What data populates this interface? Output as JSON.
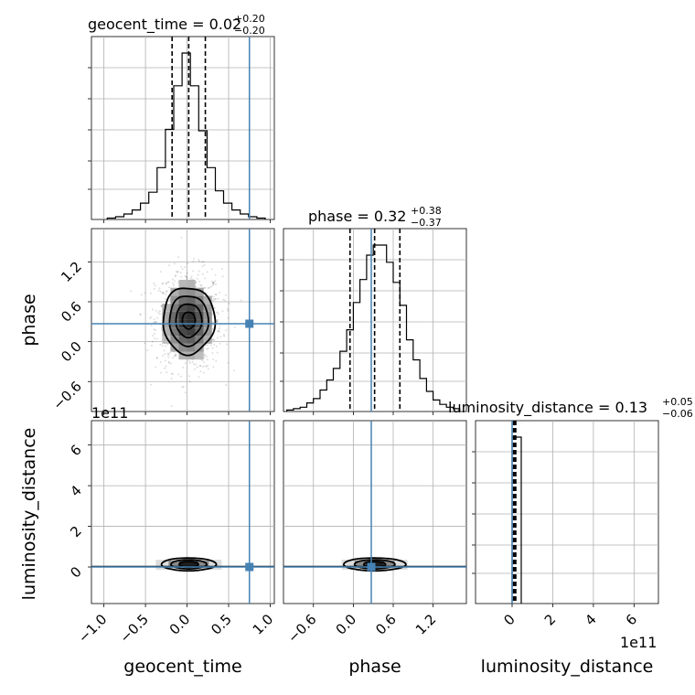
{
  "chart_data": {
    "type": "corner",
    "parameters": [
      "geocent_time",
      "phase",
      "luminosity_distance"
    ],
    "titles": [
      {
        "name": "geocent_time",
        "median": "0.02",
        "plus": "+0.20",
        "minus": "−0.20"
      },
      {
        "name": "phase",
        "median": "0.32",
        "plus": "+0.38",
        "minus": "−0.37"
      },
      {
        "name": "luminosity_distance",
        "median": "0.13",
        "plus": "+0.05",
        "minus": "−0.06"
      }
    ],
    "axis_labels": [
      "geocent_time",
      "phase",
      "luminosity_distance"
    ],
    "exponent_label": "1e11",
    "truth": {
      "geocent_time": 0.75,
      "phase": 0.27,
      "luminosity_distance": 0.0
    },
    "truth_color": "#4682b4",
    "geocent_time_axis": {
      "range": [
        -1.15,
        1.05
      ],
      "ticks": [
        -1.0,
        -0.5,
        0.0,
        0.5,
        1.0
      ],
      "tick_labels": [
        "−1.0",
        "−0.5",
        "0.0",
        "0.5",
        "1.0"
      ]
    },
    "phase_axis": {
      "range": [
        -1.05,
        1.7
      ],
      "ticks": [
        -0.6,
        0.0,
        0.6,
        1.2
      ],
      "tick_labels": [
        "−0.6",
        "0.0",
        "0.6",
        "1.2"
      ]
    },
    "luminosity_distance_axis": {
      "range": [
        -1.8,
        7.2
      ],
      "scale": "1e11",
      "ticks": [
        0,
        2,
        4,
        6
      ],
      "tick_labels": [
        "0",
        "2",
        "4",
        "6"
      ]
    },
    "geocent_time_hist": {
      "bin_edges": [
        -0.96,
        -0.86,
        -0.76,
        -0.66,
        -0.56,
        -0.46,
        -0.36,
        -0.26,
        -0.16,
        -0.06,
        0.04,
        0.14,
        0.24,
        0.34,
        0.44,
        0.54,
        0.64,
        0.74,
        0.84,
        0.94
      ],
      "counts": [
        1,
        2,
        4,
        7,
        12,
        20,
        38,
        66,
        98,
        122,
        98,
        65,
        38,
        21,
        12,
        7,
        4,
        2,
        1
      ],
      "quantiles": [
        -0.18,
        0.02,
        0.22
      ]
    },
    "phase_hist": {
      "bin_edges": [
        -1.0,
        -0.9,
        -0.8,
        -0.7,
        -0.6,
        -0.5,
        -0.4,
        -0.3,
        -0.2,
        -0.1,
        0.0,
        0.1,
        0.2,
        0.3,
        0.4,
        0.5,
        0.6,
        0.7,
        0.8,
        0.9,
        1.0,
        1.1,
        1.2,
        1.3,
        1.4,
        1.5,
        1.6
      ],
      "counts": [
        1,
        2,
        3,
        6,
        9,
        15,
        22,
        30,
        42,
        57,
        76,
        92,
        109,
        116,
        116,
        104,
        90,
        74,
        50,
        36,
        23,
        14,
        8,
        5,
        3,
        2
      ],
      "quantiles": [
        -0.05,
        0.32,
        0.7
      ]
    },
    "luminosity_distance_hist": {
      "bin_edges": [
        0.0,
        0.45
      ],
      "counts": [
        1
      ],
      "quantiles": [
        0.07,
        0.13,
        0.18
      ]
    },
    "contour_levels_sigma": [
      0.5,
      1.0,
      1.5,
      2.0
    ],
    "phase_vs_geocent_time": {
      "center": [
        0.02,
        0.32
      ],
      "sigma": [
        0.2,
        0.38
      ]
    },
    "luminosity_distance_vs_geocent_time": {
      "center": [
        0.02,
        0.13
      ],
      "sigma": [
        0.2,
        0.06
      ]
    },
    "luminosity_distance_vs_phase": {
      "center": [
        0.32,
        0.13
      ],
      "sigma": [
        0.38,
        0.06
      ]
    }
  }
}
